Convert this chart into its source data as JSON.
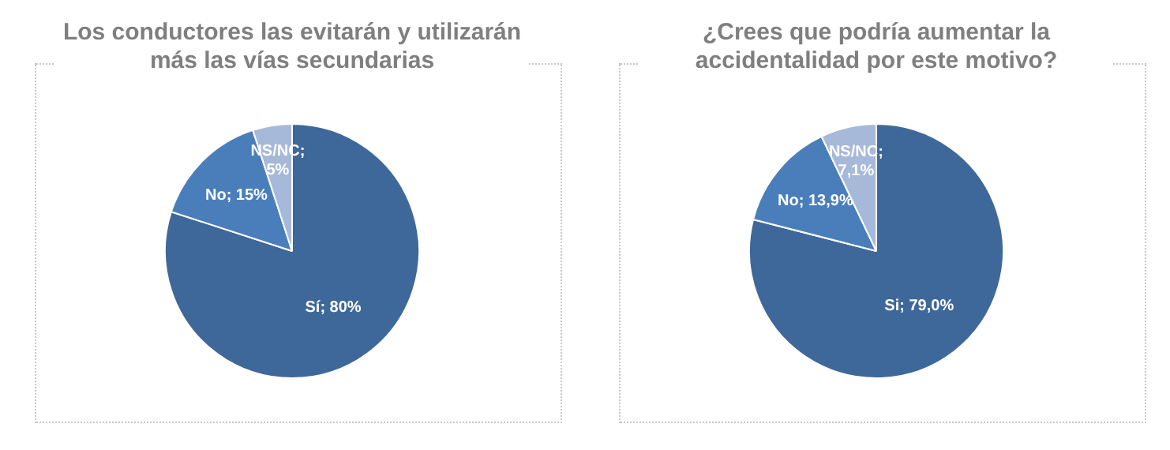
{
  "chart_data": [
    {
      "type": "pie",
      "title": "Los conductores las evitarán y utilizarán más las vías secundarias",
      "categories": [
        "Sí",
        "No",
        "NS/NC"
      ],
      "values": [
        80,
        15,
        5
      ],
      "colors": [
        "#3e6899",
        "#4a7ebb",
        "#a7b9d9"
      ],
      "value_labels": [
        "; 80%",
        "; 15%",
        "; 5%"
      ],
      "legend": false
    },
    {
      "type": "pie",
      "title": "¿Crees que podría aumentar la accidentalidad por este motivo?",
      "categories": [
        "Si",
        "No",
        "NS/NC"
      ],
      "values": [
        79.0,
        13.9,
        7.1
      ],
      "colors": [
        "#3e6899",
        "#4a7ebb",
        "#a7b9d9"
      ],
      "value_labels": [
        "; 79,0%",
        "; 13,9%",
        "; 7,1%"
      ],
      "legend": false
    }
  ]
}
